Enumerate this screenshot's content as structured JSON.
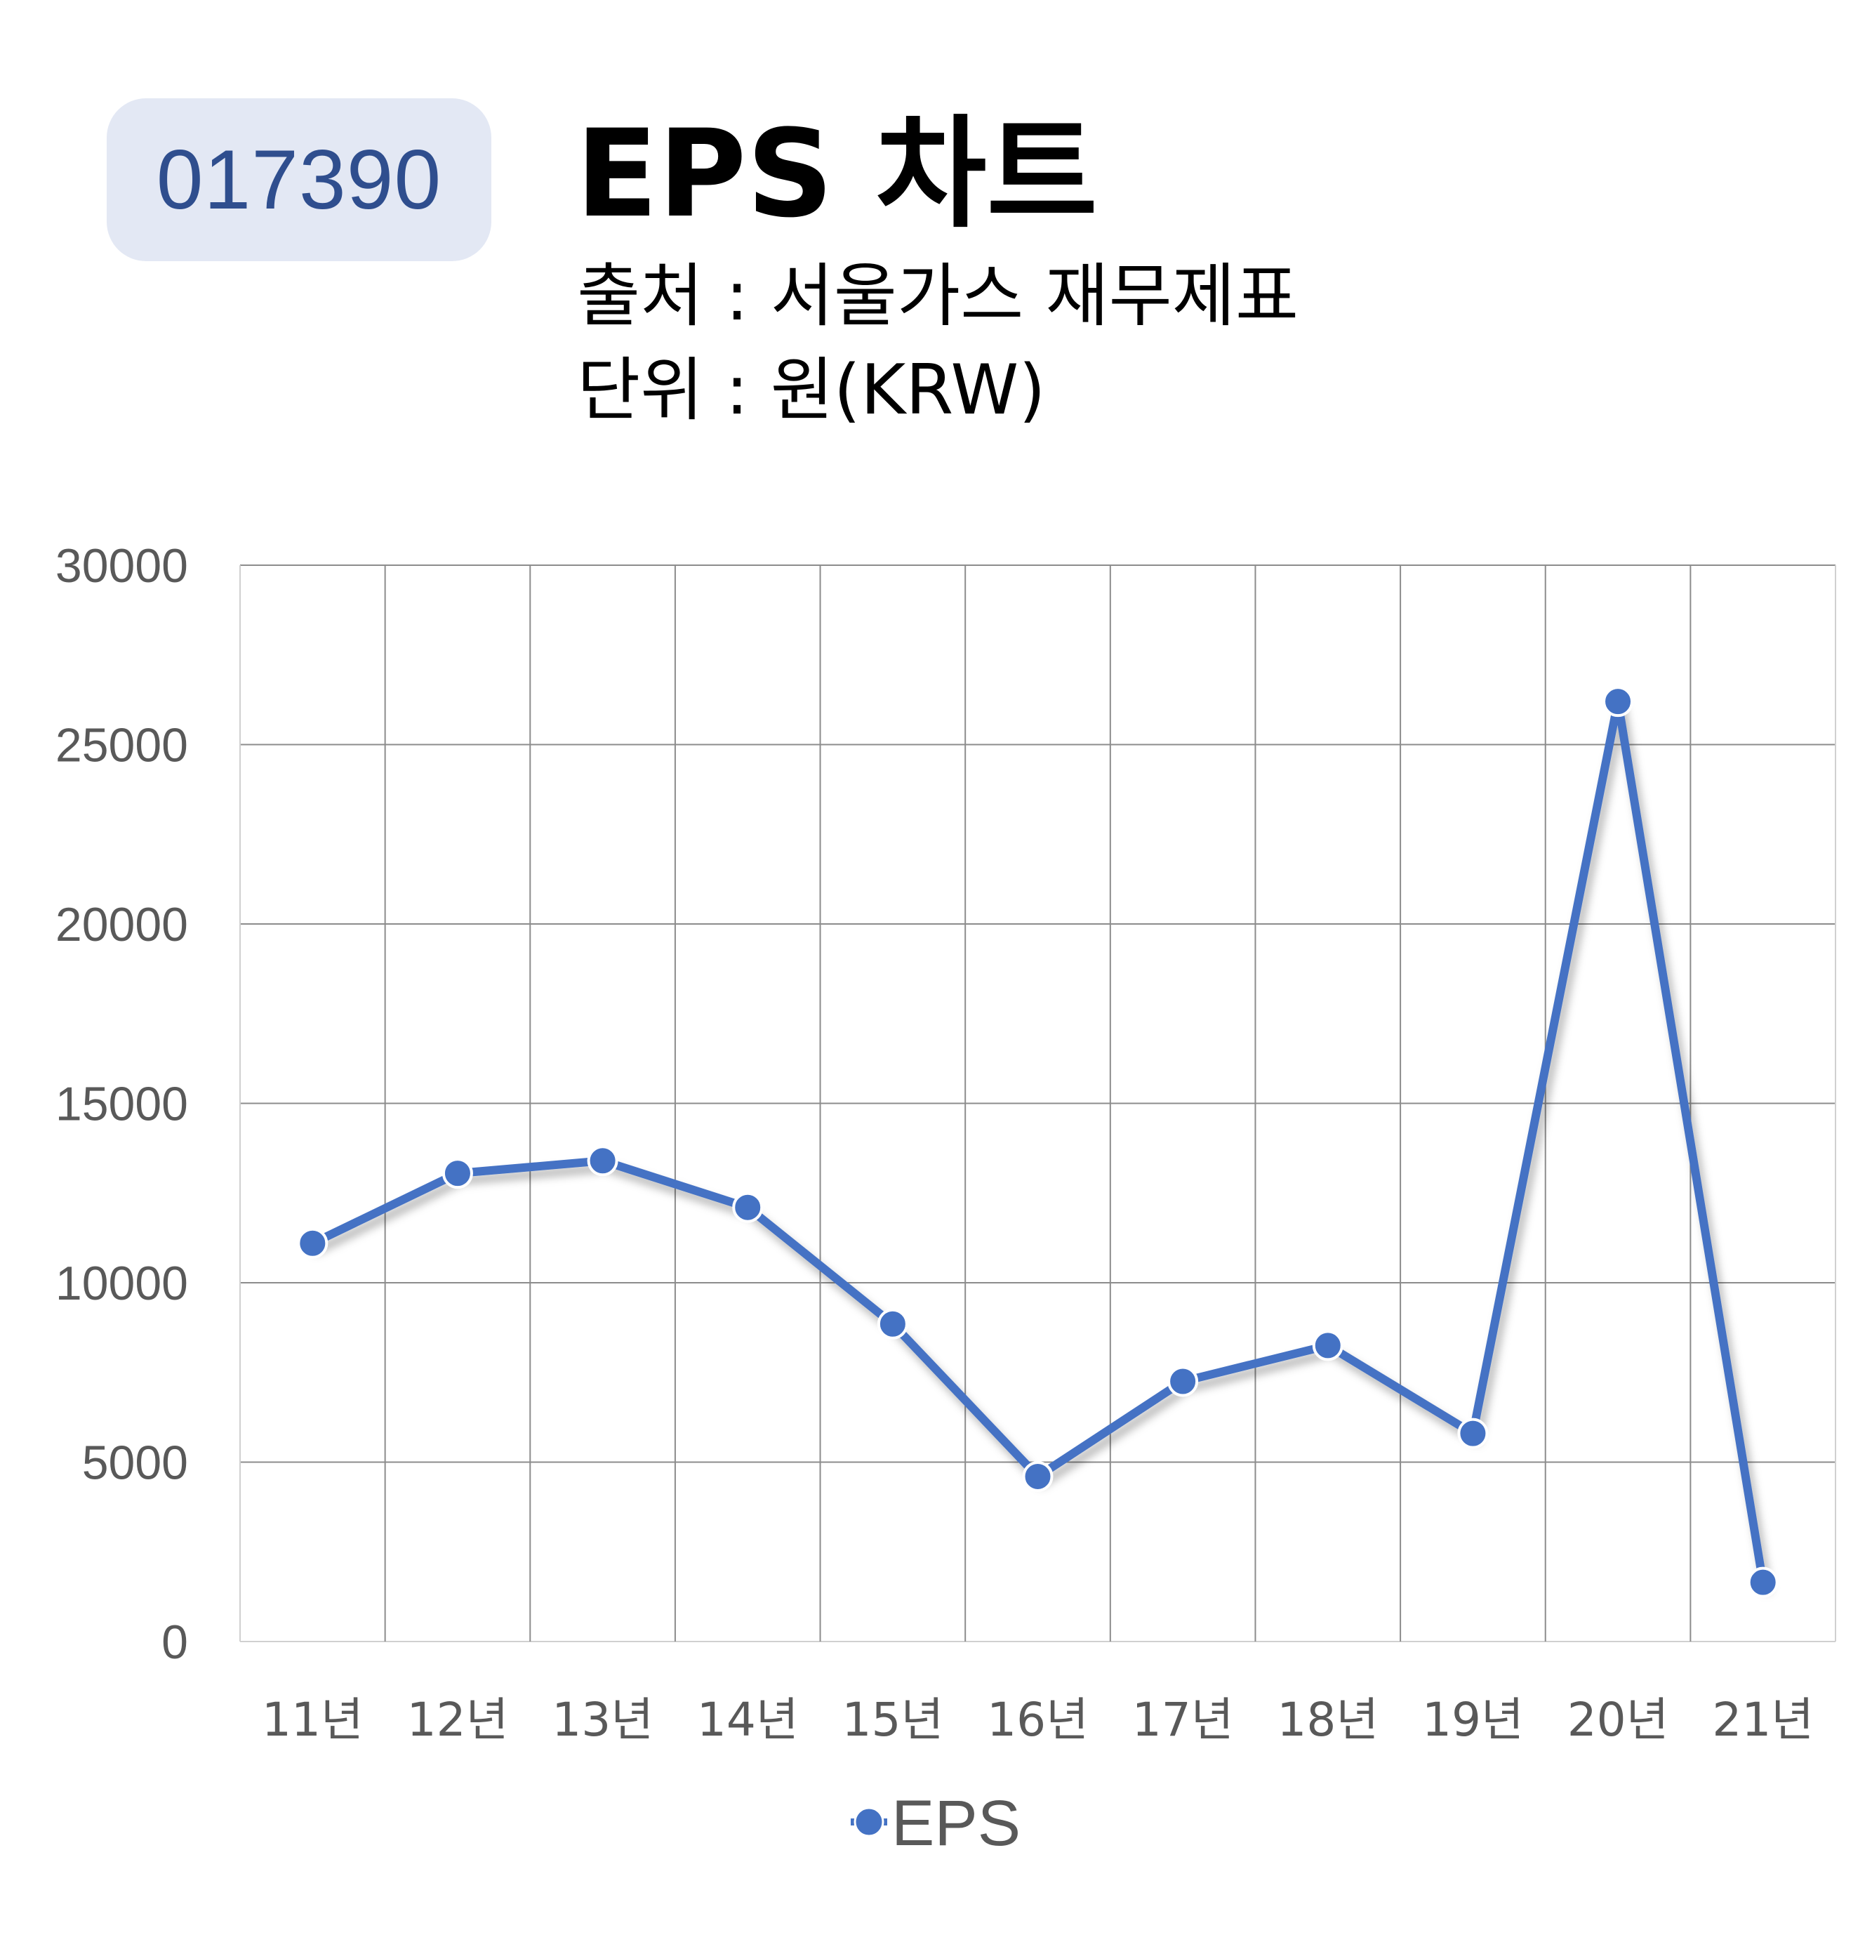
{
  "header": {
    "stock_code": "017390",
    "title": "EPS 차트",
    "source_line": "출처 : 서울가스 재무제표",
    "unit_line": "단위 : 원(KRW)"
  },
  "chart_data": {
    "type": "line",
    "title": "EPS 차트",
    "xlabel": "",
    "ylabel": "",
    "categories": [
      "11년",
      "12년",
      "13년",
      "14년",
      "15년",
      "16년",
      "17년",
      "18년",
      "19년",
      "20년",
      "21년"
    ],
    "series": [
      {
        "name": "EPS",
        "color": "#4472c4",
        "values": [
          11100,
          13050,
          13400,
          12100,
          8850,
          4600,
          7250,
          8250,
          5800,
          26200,
          1650
        ]
      }
    ],
    "ylim": [
      0,
      30000
    ],
    "yticks": [
      0,
      5000,
      10000,
      15000,
      20000,
      25000,
      30000
    ],
    "grid": true,
    "legend": "bottom",
    "marker": "circle"
  }
}
